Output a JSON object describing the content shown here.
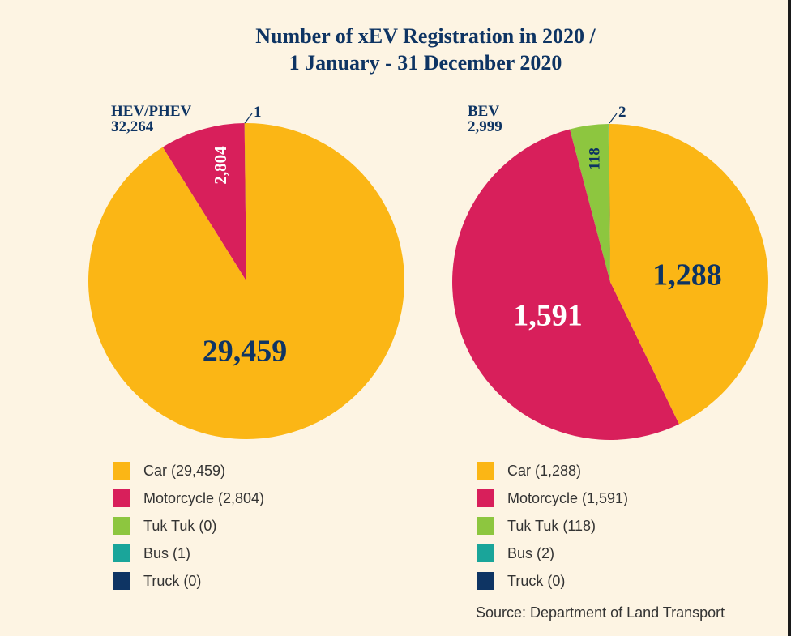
{
  "title": {
    "line1": "Number of xEV Registration in 2020 /",
    "line2": "1 January - 31 December 2020"
  },
  "source": "Source: Department of Land Transport",
  "colors": {
    "car": "#fbb615",
    "motorcycle": "#d81f5b",
    "tuktuk": "#8dc63f",
    "bus": "#1aa59a",
    "truck": "#0e3463",
    "text_dark": "#0e3463",
    "background": "#fdf4e3"
  },
  "chart_data": [
    {
      "type": "pie",
      "label": "HEV/PHEV",
      "total": "32,264",
      "categories": [
        "Car",
        "Motorcycle",
        "Tuk Tuk",
        "Bus",
        "Truck"
      ],
      "values": [
        29459,
        2804,
        0,
        1,
        0
      ],
      "slice_labels": [
        "29,459",
        "2,804",
        "",
        "1",
        ""
      ],
      "legend": [
        "Car (29,459)",
        "Motorcycle (2,804)",
        "Tuk Tuk (0)",
        "Bus (1)",
        "Truck (0)"
      ]
    },
    {
      "type": "pie",
      "label": "BEV",
      "total": "2,999",
      "categories": [
        "Car",
        "Motorcycle",
        "Tuk Tuk",
        "Bus",
        "Truck"
      ],
      "values": [
        1288,
        1591,
        118,
        2,
        0
      ],
      "slice_labels": [
        "1,288",
        "1,591",
        "118",
        "2",
        ""
      ],
      "legend": [
        "Car (1,288)",
        "Motorcycle (1,591)",
        "Tuk Tuk (118)",
        "Bus (2)",
        "Truck (0)"
      ]
    }
  ]
}
